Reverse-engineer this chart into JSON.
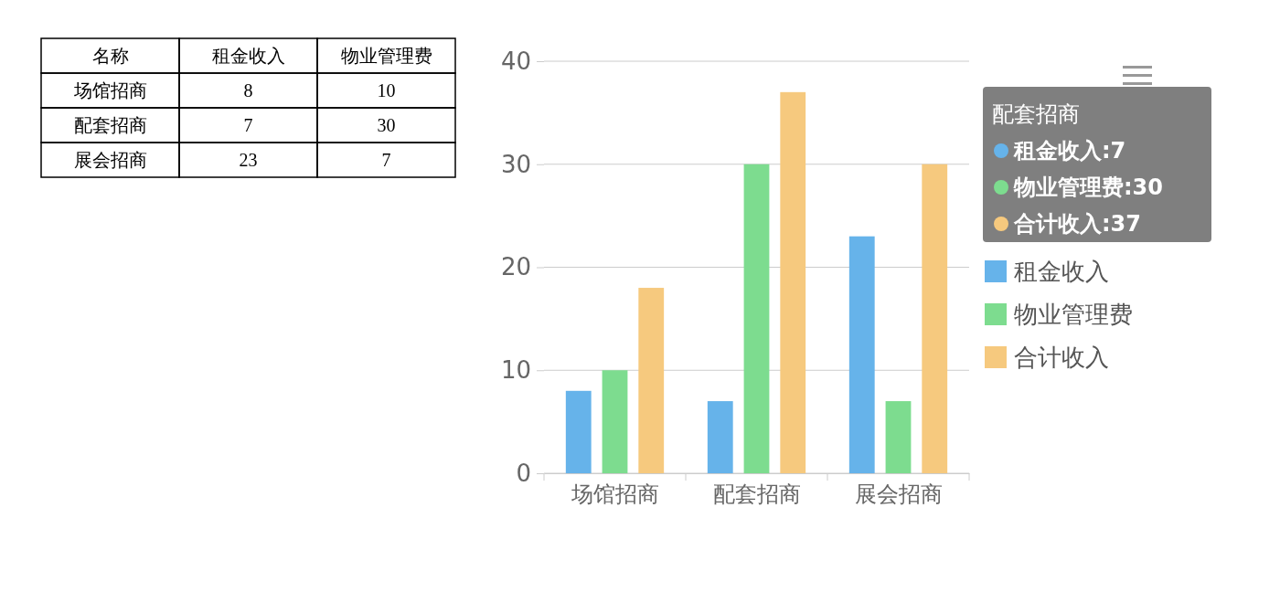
{
  "chart_data": {
    "type": "bar",
    "categories": [
      "场馆招商",
      "配套招商",
      "展会招商"
    ],
    "series": [
      {
        "name": "租金收入",
        "color": "#66b3ea",
        "values": [
          8,
          7,
          23
        ]
      },
      {
        "name": "物业管理费",
        "color": "#7ddc8f",
        "values": [
          10,
          30,
          7
        ]
      },
      {
        "name": "合计收入",
        "color": "#f6c97e",
        "values": [
          18,
          37,
          30
        ]
      }
    ],
    "ylim": [
      0,
      40
    ],
    "yticks": [
      0,
      10,
      20,
      30,
      40
    ],
    "grid": "y",
    "legend": "right",
    "annotations": [
      "名称",
      "8",
      "10",
      "7",
      "30",
      "23",
      "7",
      "配套招商",
      "租金收入:7",
      "物业管理费:30",
      "合计收入:37"
    ]
  }
}
